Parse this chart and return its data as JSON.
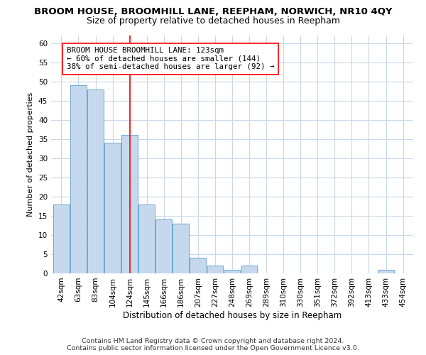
{
  "title": "BROOM HOUSE, BROOMHILL LANE, REEPHAM, NORWICH, NR10 4QY",
  "subtitle": "Size of property relative to detached houses in Reepham",
  "xlabel": "Distribution of detached houses by size in Reepham",
  "ylabel": "Number of detached properties",
  "categories": [
    "42sqm",
    "63sqm",
    "83sqm",
    "104sqm",
    "124sqm",
    "145sqm",
    "166sqm",
    "186sqm",
    "207sqm",
    "227sqm",
    "248sqm",
    "269sqm",
    "289sqm",
    "310sqm",
    "330sqm",
    "351sqm",
    "372sqm",
    "392sqm",
    "413sqm",
    "433sqm",
    "454sqm"
  ],
  "values": [
    18,
    49,
    48,
    34,
    36,
    18,
    14,
    13,
    4,
    2,
    1,
    2,
    0,
    0,
    0,
    0,
    0,
    0,
    0,
    1,
    0
  ],
  "bar_color": "#c5d8ed",
  "bar_edge_color": "#5a9fc8",
  "red_line_index": 4,
  "annotation_line1": "BROOM HOUSE BROOMHILL LANE: 123sqm",
  "annotation_line2": "← 60% of detached houses are smaller (144)",
  "annotation_line3": "38% of semi-detached houses are larger (92) →",
  "ylim": [
    0,
    62
  ],
  "yticks": [
    0,
    5,
    10,
    15,
    20,
    25,
    30,
    35,
    40,
    45,
    50,
    55,
    60
  ],
  "footer_line1": "Contains HM Land Registry data © Crown copyright and database right 2024.",
  "footer_line2": "Contains public sector information licensed under the Open Government Licence v3.0.",
  "background_color": "#ffffff",
  "grid_color": "#c8d8e8",
  "title_fontsize": 9.5,
  "subtitle_fontsize": 9,
  "annotation_fontsize": 7.8,
  "ylabel_fontsize": 8,
  "xlabel_fontsize": 8.5,
  "footer_fontsize": 6.8,
  "tick_fontsize": 7.5
}
